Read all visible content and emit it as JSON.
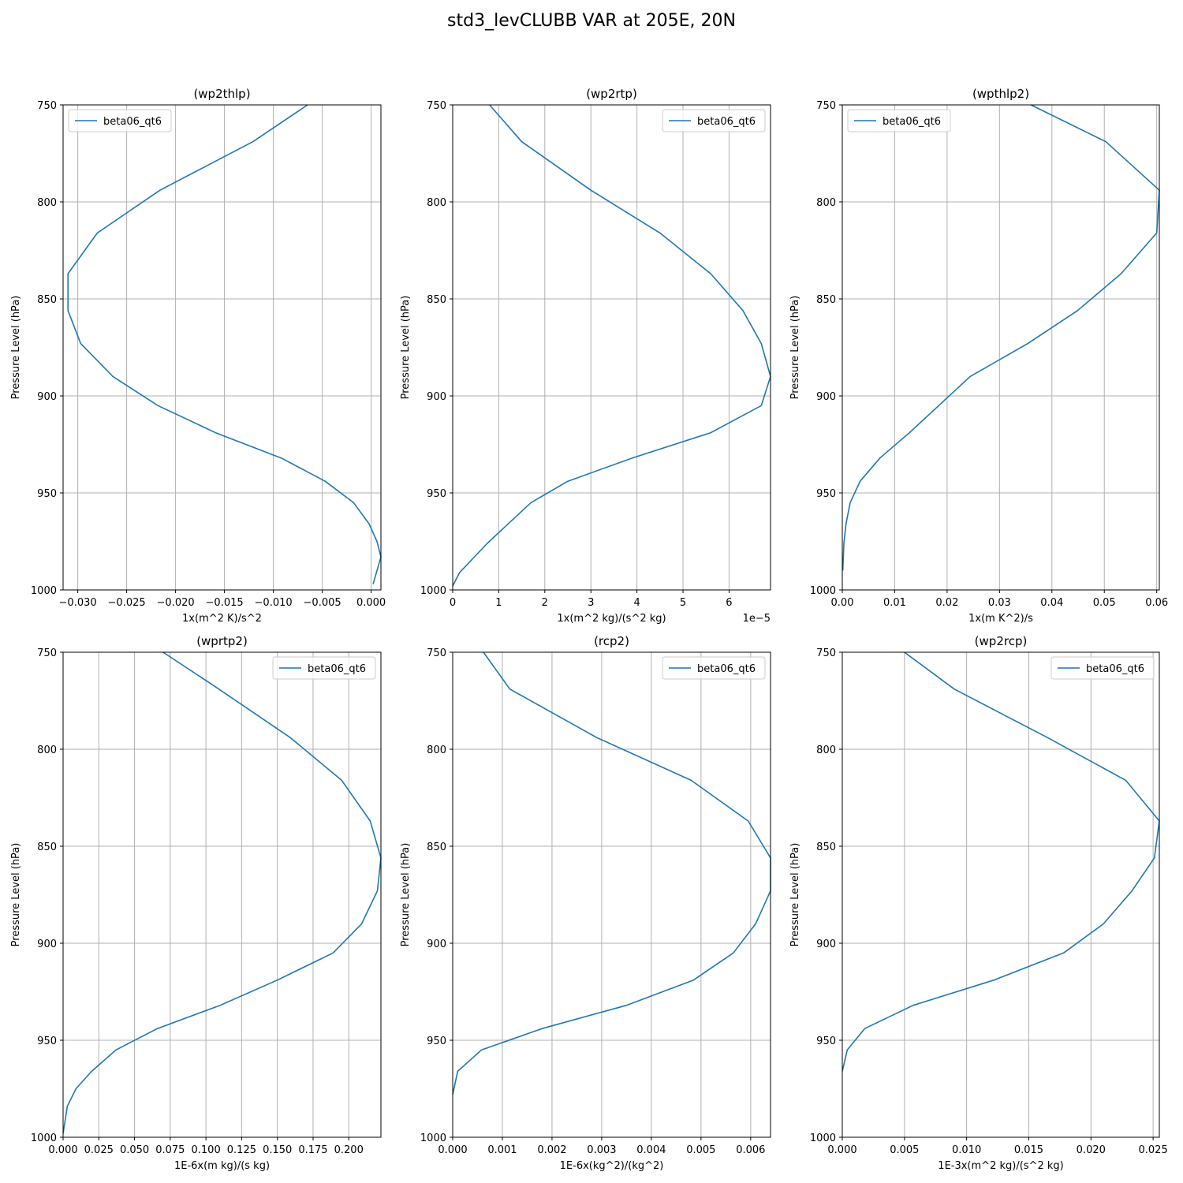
{
  "figure": {
    "suptitle": "std3_levCLUBB VAR at 205E, 20N"
  },
  "colors": {
    "line": "#1f77b4",
    "grid": "#b0b0b0",
    "axes": "#000000"
  },
  "chart_data": [
    {
      "type": "line",
      "title": "(wp2thlp)",
      "xlabel": "1x(m^2 K)/s^2",
      "ylabel": "Pressure Level (hPa)",
      "offset_text": "",
      "xlim": [
        -0.0315,
        0.001
      ],
      "ylim": [
        1000,
        750
      ],
      "y_inverted": true,
      "xticks": [
        -0.03,
        -0.025,
        -0.02,
        -0.015,
        -0.01,
        -0.005,
        0.0
      ],
      "xtick_labels": [
        "−0.030",
        "−0.025",
        "−0.020",
        "−0.015",
        "−0.010",
        "−0.005",
        "0.000"
      ],
      "yticks": [
        750,
        800,
        850,
        900,
        950,
        1000
      ],
      "ytick_labels": [
        "750",
        "800",
        "850",
        "900",
        "950",
        "1000"
      ],
      "grid": true,
      "legend_position": "upper-left",
      "series": [
        {
          "name": "beta06_qt6",
          "x": [
            -0.0065,
            -0.0121,
            -0.0216,
            -0.028,
            -0.031,
            -0.031,
            -0.0297,
            -0.0264,
            -0.0218,
            -0.0159,
            -0.0092,
            -0.0047,
            -0.0018,
            -0.0002,
            0.0006,
            0.001,
            0.0002
          ],
          "y": [
            750,
            769,
            794,
            816,
            837,
            856,
            873,
            890,
            905,
            919,
            932,
            944,
            955,
            966,
            975,
            983,
            997
          ]
        }
      ]
    },
    {
      "type": "line",
      "title": "(wp2rtp)",
      "xlabel": "1x(m^2 kg)/(s^2 kg)",
      "ylabel": "Pressure Level (hPa)",
      "offset_text": "1e−5",
      "xlim": [
        0,
        6.9
      ],
      "ylim": [
        1000,
        750
      ],
      "y_inverted": true,
      "xticks": [
        0,
        1,
        2,
        3,
        4,
        5,
        6
      ],
      "xtick_labels": [
        "0",
        "1",
        "2",
        "3",
        "4",
        "5",
        "6"
      ],
      "yticks": [
        750,
        800,
        850,
        900,
        950,
        1000
      ],
      "ytick_labels": [
        "750",
        "800",
        "850",
        "900",
        "950",
        "1000"
      ],
      "grid": true,
      "legend_position": "upper-right",
      "series": [
        {
          "name": "beta06_qt6",
          "x": [
            0.8,
            1.5,
            3.0,
            4.5,
            5.6,
            6.3,
            6.7,
            6.9,
            6.7,
            5.6,
            3.9,
            2.5,
            1.7,
            1.2,
            0.75,
            0.15,
            0.0
          ],
          "y": [
            750,
            769,
            794,
            816,
            837,
            856,
            873,
            890,
            905,
            919,
            932,
            944,
            955,
            966,
            976,
            991,
            998
          ]
        }
      ]
    },
    {
      "type": "line",
      "title": "(wpthlp2)",
      "xlabel": "1x(m K^2)/s",
      "ylabel": "Pressure Level (hPa)",
      "offset_text": "",
      "xlim": [
        0,
        0.0605
      ],
      "ylim": [
        1000,
        750
      ],
      "y_inverted": true,
      "xticks": [
        0.0,
        0.01,
        0.02,
        0.03,
        0.04,
        0.05,
        0.06
      ],
      "xtick_labels": [
        "0.00",
        "0.01",
        "0.02",
        "0.03",
        "0.04",
        "0.05",
        "0.06"
      ],
      "yticks": [
        750,
        800,
        850,
        900,
        950,
        1000
      ],
      "ytick_labels": [
        "750",
        "800",
        "850",
        "900",
        "950",
        "1000"
      ],
      "grid": true,
      "legend_position": "upper-left",
      "series": [
        {
          "name": "beta06_qt6",
          "x": [
            0.036,
            0.0503,
            0.0605,
            0.06,
            0.0532,
            0.0449,
            0.0354,
            0.0244,
            0.0128,
            0.0072,
            0.0034,
            0.0015,
            0.0007,
            0.0003,
            0.0001
          ],
          "y": [
            750,
            769,
            794,
            816,
            837,
            856,
            873,
            890,
            919,
            932,
            944,
            955,
            966,
            976,
            990
          ]
        }
      ]
    },
    {
      "type": "line",
      "title": "(wprtp2)",
      "xlabel": "1E-6x(m kg)/(s kg)",
      "ylabel": "Pressure Level (hPa)",
      "offset_text": "",
      "xlim": [
        0,
        0.2225
      ],
      "ylim": [
        1000,
        750
      ],
      "y_inverted": true,
      "xticks": [
        0.0,
        0.025,
        0.05,
        0.075,
        0.1,
        0.125,
        0.15,
        0.175,
        0.2
      ],
      "xtick_labels": [
        "0.000",
        "0.025",
        "0.050",
        "0.075",
        "0.100",
        "0.125",
        "0.150",
        "0.175",
        "0.200"
      ],
      "yticks": [
        750,
        800,
        850,
        900,
        950,
        1000
      ],
      "ytick_labels": [
        "750",
        "800",
        "850",
        "900",
        "950",
        "1000"
      ],
      "grid": true,
      "legend_position": "upper-right",
      "series": [
        {
          "name": "beta06_qt6",
          "x": [
            0.07,
            0.105,
            0.159,
            0.195,
            0.215,
            0.2225,
            0.22,
            0.209,
            0.189,
            0.15,
            0.11,
            0.066,
            0.037,
            0.02,
            0.009,
            0.003,
            0.0
          ],
          "y": [
            750,
            767,
            794,
            816,
            837,
            856,
            873,
            890,
            905,
            919,
            932,
            944,
            955,
            966,
            975,
            984,
            998
          ]
        }
      ]
    },
    {
      "type": "line",
      "title": "(rcp2)",
      "xlabel": "1E-6x(kg^2)/(kg^2)",
      "ylabel": "Pressure Level (hPa)",
      "offset_text": "",
      "xlim": [
        0,
        0.0064
      ],
      "ylim": [
        1000,
        750
      ],
      "y_inverted": true,
      "xticks": [
        0.0,
        0.001,
        0.002,
        0.003,
        0.004,
        0.005,
        0.006
      ],
      "xtick_labels": [
        "0.000",
        "0.001",
        "0.002",
        "0.003",
        "0.004",
        "0.005",
        "0.006"
      ],
      "yticks": [
        750,
        800,
        850,
        900,
        950,
        1000
      ],
      "ytick_labels": [
        "750",
        "800",
        "850",
        "900",
        "950",
        "1000"
      ],
      "grid": true,
      "legend_position": "upper-right",
      "series": [
        {
          "name": "beta06_qt6",
          "x": [
            0.00062,
            0.00115,
            0.0029,
            0.0048,
            0.00595,
            0.0064,
            0.0064,
            0.0061,
            0.00565,
            0.00485,
            0.0035,
            0.0018,
            0.00058,
            0.0001,
            0.0
          ],
          "y": [
            750,
            769,
            794,
            816,
            837,
            856,
            873,
            890,
            905,
            919,
            932,
            944,
            955,
            966,
            978
          ]
        }
      ]
    },
    {
      "type": "line",
      "title": "(wp2rcp)",
      "xlabel": "1E-3x(m^2 kg)/(s^2 kg)",
      "ylabel": "Pressure Level (hPa)",
      "offset_text": "",
      "xlim": [
        0,
        0.0255
      ],
      "ylim": [
        1000,
        750
      ],
      "y_inverted": true,
      "xticks": [
        0.0,
        0.005,
        0.01,
        0.015,
        0.02,
        0.025
      ],
      "xtick_labels": [
        "0.000",
        "0.005",
        "0.010",
        "0.015",
        "0.020",
        "0.025"
      ],
      "yticks": [
        750,
        800,
        850,
        900,
        950,
        1000
      ],
      "ytick_labels": [
        "750",
        "800",
        "850",
        "900",
        "950",
        "1000"
      ],
      "grid": true,
      "legend_position": "upper-right",
      "series": [
        {
          "name": "beta06_qt6",
          "x": [
            0.005,
            0.009,
            0.0165,
            0.0228,
            0.0255,
            0.0251,
            0.0233,
            0.021,
            0.0178,
            0.0122,
            0.0057,
            0.0018,
            0.0004,
            0.0
          ],
          "y": [
            750,
            769,
            794,
            816,
            837,
            856,
            873,
            890,
            905,
            919,
            932,
            944,
            955,
            966
          ]
        }
      ]
    }
  ]
}
